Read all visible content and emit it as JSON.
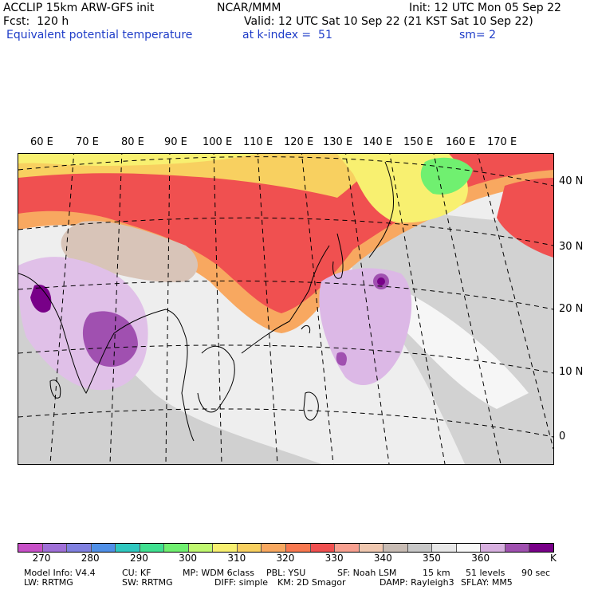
{
  "header": {
    "model_line": "ACCLIP 15km ARW-GFS init",
    "center": "NCAR/MMM",
    "init": "Init: 12 UTC Mon 05 Sep 22",
    "fcst": "Fcst:  120 h",
    "valid": "Valid: 12 UTC Sat 10 Sep 22 (21 KST Sat 10 Sep 22)",
    "field": "Equivalent potential temperature",
    "level": "at k-index =  51",
    "smooth": "sm= 2"
  },
  "map": {
    "lon_labels": [
      "60 E",
      "70 E",
      "80 E",
      "90 E",
      "100 E",
      "110 E",
      "120 E",
      "130 E",
      "140 E",
      "150 E",
      "160 E",
      "170 E"
    ],
    "lat_labels": [
      "40 N",
      "30 N",
      "20 N",
      "10 N",
      "0"
    ]
  },
  "colorbar": {
    "colors": [
      "#c850c8",
      "#a070d8",
      "#8080e0",
      "#5090e8",
      "#30c8c0",
      "#40e090",
      "#70f070",
      "#c0f870",
      "#f8f070",
      "#f8d060",
      "#f8a860",
      "#f87850",
      "#f05050",
      "#f8a090",
      "#f0c8b0",
      "#c8bcb4",
      "#c8c8c8",
      "#e8e8e8",
      "#f8f8f8",
      "#d8b0e0",
      "#a050b0",
      "#780088"
    ],
    "labels": [
      "270",
      "280",
      "290",
      "300",
      "310",
      "320",
      "330",
      "340",
      "350",
      "360"
    ],
    "unit": "K"
  },
  "footer": {
    "line1": [
      "Model Info: V4.4",
      "CU: KF",
      "MP: WDM 6class",
      "PBL: YSU",
      "SF: Noah LSM",
      "15 km",
      "51 levels",
      "90 sec"
    ],
    "line2": [
      "LW: RRTMG",
      "SW: RRTMG",
      "DIFF: simple",
      "KM: 2D Smagor",
      "DAMP: Rayleigh3",
      "SFLAY: MM5"
    ]
  }
}
